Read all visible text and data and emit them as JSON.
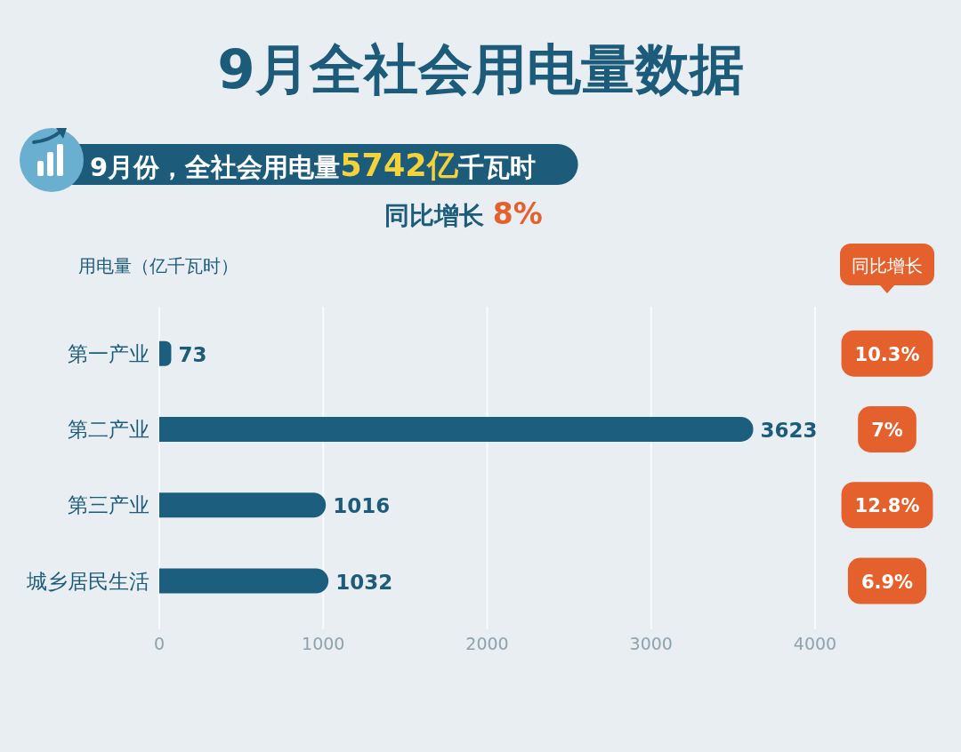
{
  "chart_data": {
    "type": "bar",
    "orientation": "horizontal",
    "title": "9月全社会用电量数据",
    "subtitle": "9月份，全社会用电量**5742亿**千瓦时",
    "xlabel": "用电量（亿千瓦时）",
    "categories": [
      "第一产业",
      "第二产业",
      "第三产业",
      "城乡居民生活"
    ],
    "values": [
      73,
      3623,
      1016,
      1032
    ],
    "color": "#1b5e7d",
    "xlim": [
      0,
      4000
    ],
    "xticks": [
      0,
      1000,
      2000,
      3000,
      4000
    ],
    "grid": "x",
    "data_labels": true,
    "annotations": [
      "同比增长 **8%**",
      "同比增长",
      "10.3%",
      "7%",
      "12.8%",
      "6.9%"
    ]
  }
}
